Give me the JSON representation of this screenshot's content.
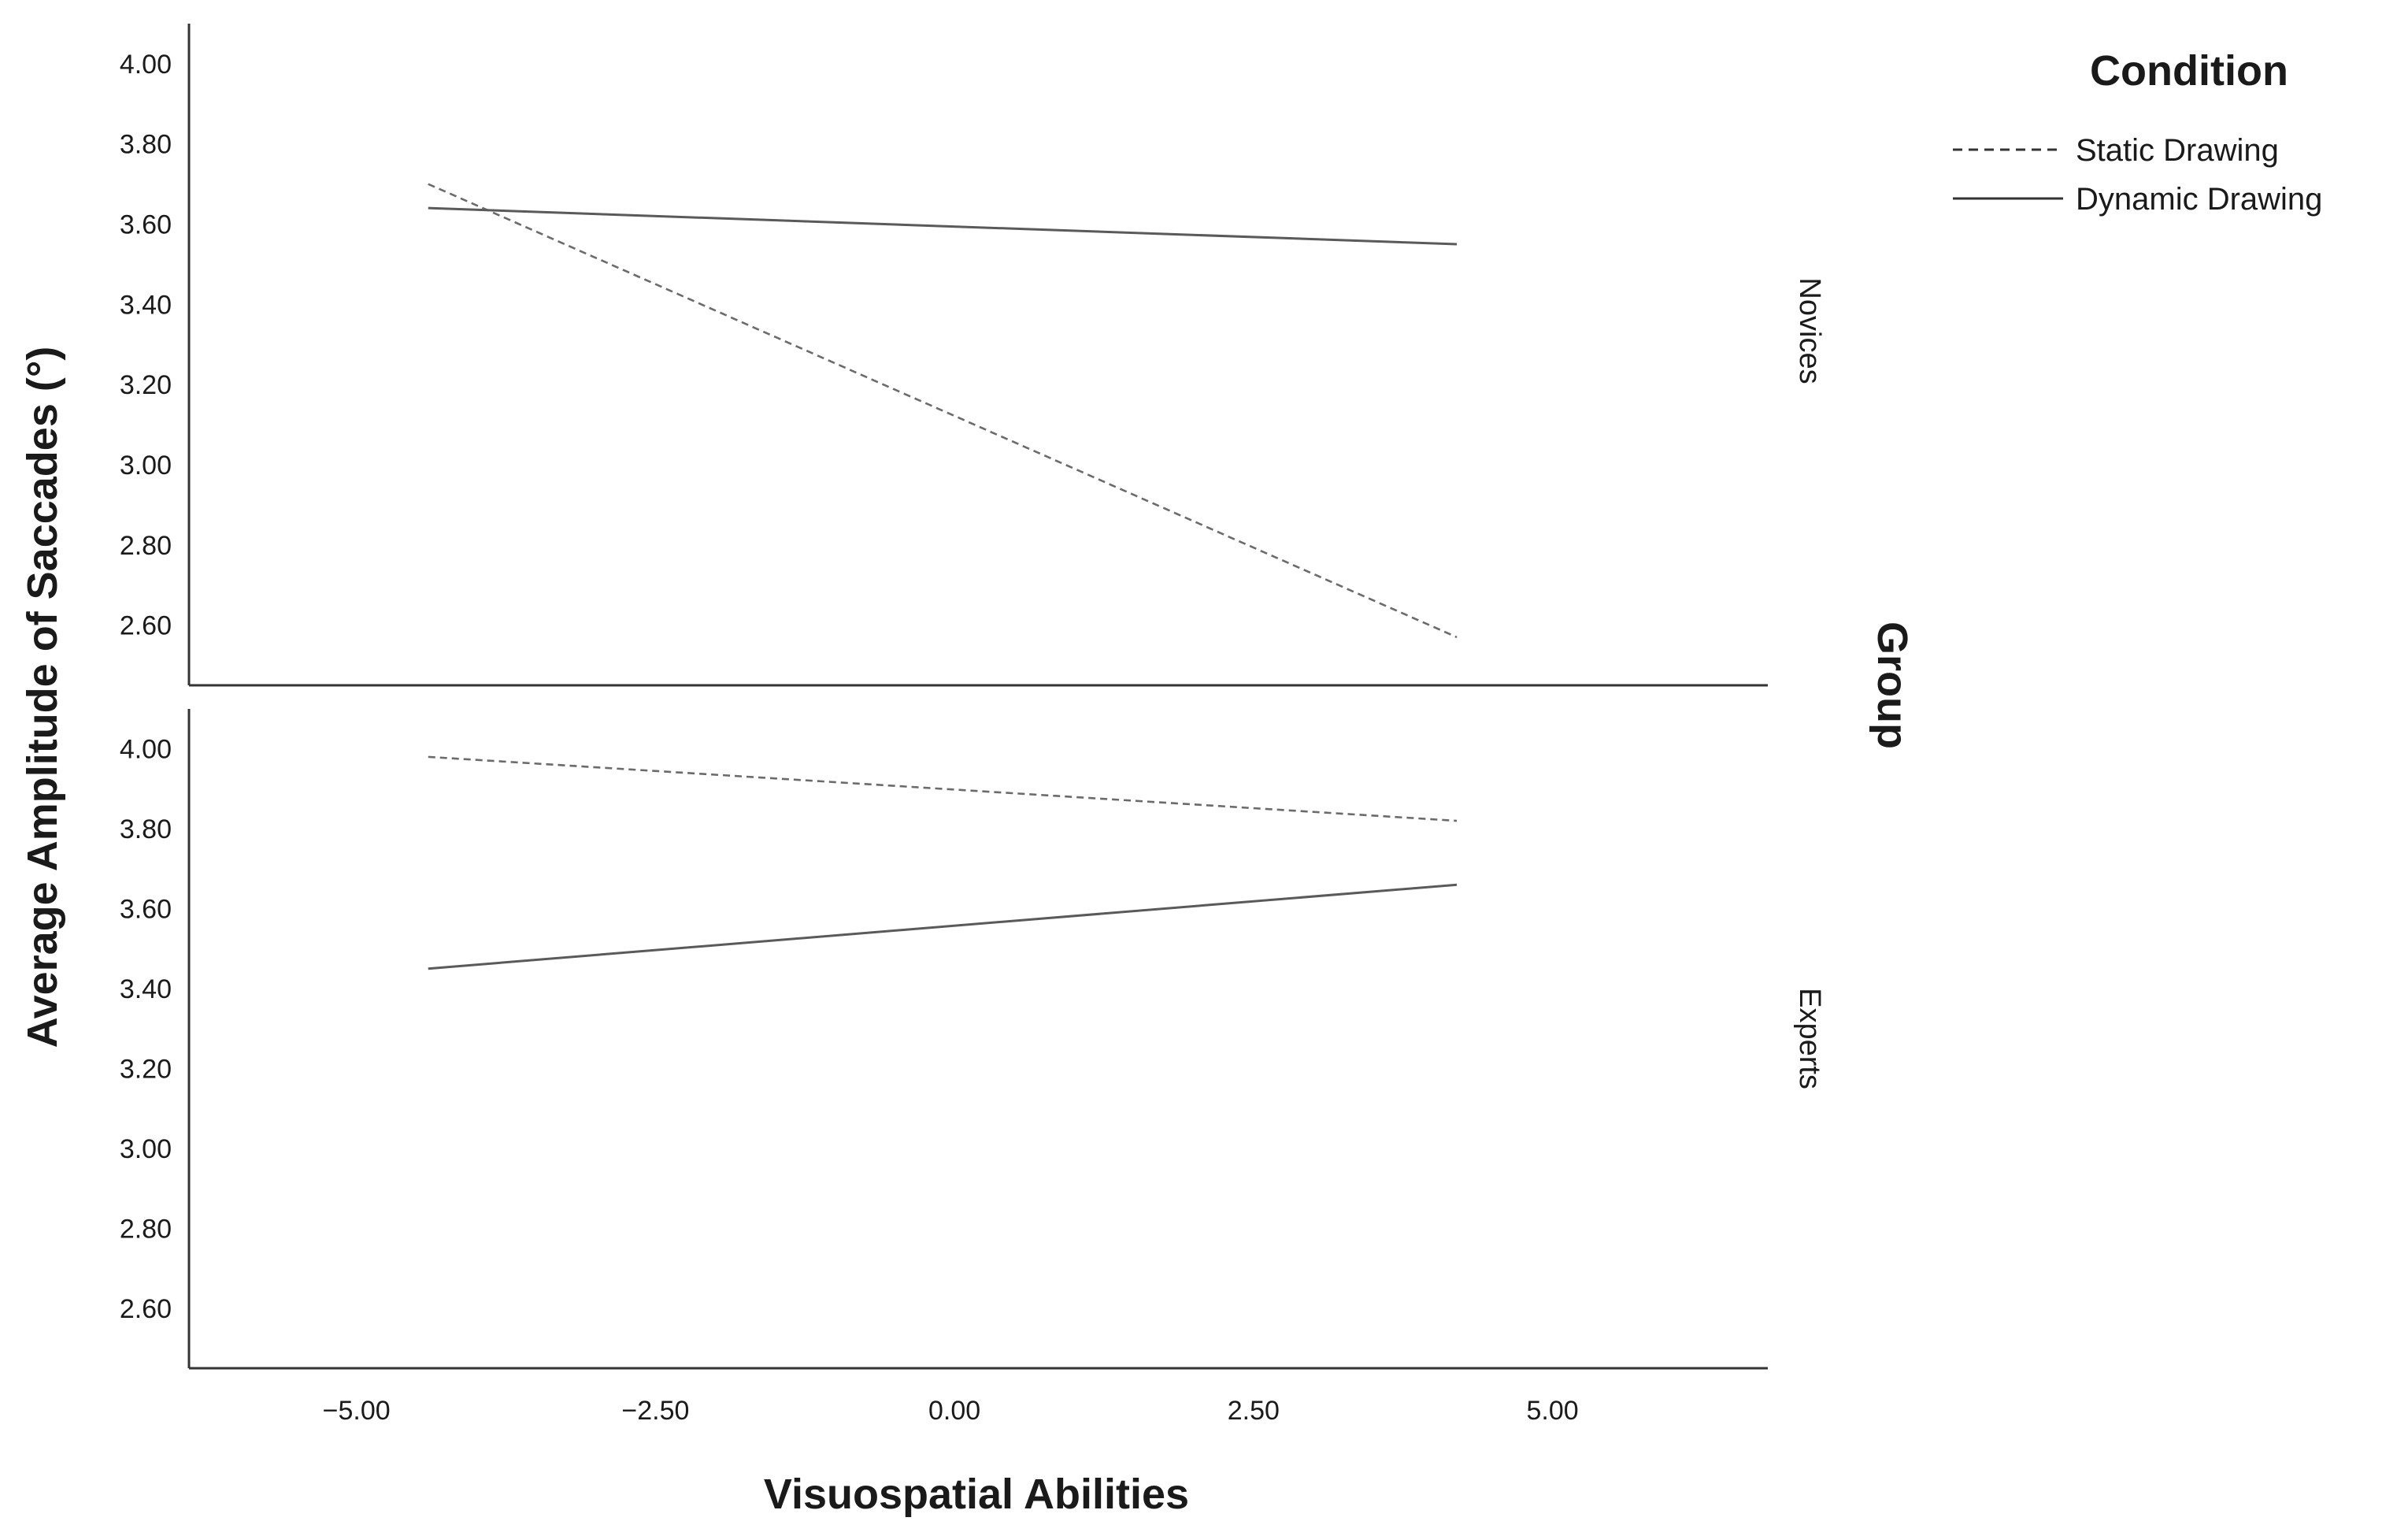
{
  "chart_data": {
    "type": "line",
    "xlabel": "Visuospatial Abilities",
    "ylabel": "Average Amplitude of Saccades  (°)",
    "xlim": [
      -6.4,
      6.8
    ],
    "x_ticks": [
      "−5.00",
      "−2.50",
      "0.00",
      "2.50",
      "5.00"
    ],
    "x_tick_values": [
      -5,
      -2.5,
      0,
      2.5,
      5
    ],
    "ylim": [
      2.45,
      4.1
    ],
    "y_ticks": [
      "4.00",
      "3.80",
      "3.60",
      "3.40",
      "3.20",
      "3.00",
      "2.80",
      "2.60"
    ],
    "y_tick_values": [
      4.0,
      3.8,
      3.6,
      3.4,
      3.2,
      3.0,
      2.8,
      2.6
    ],
    "facet_title": "Group",
    "legend": {
      "title": "Condition",
      "position": "top-right",
      "entries": [
        {
          "name": "Static Drawing",
          "style": "dashed"
        },
        {
          "name": "Dynamic Drawing",
          "style": "solid"
        }
      ]
    },
    "panels": [
      {
        "label": "Novices",
        "series": [
          {
            "name": "Static Drawing",
            "style": "dashed",
            "x": [
              -4.4,
              4.2
            ],
            "y": [
              3.7,
              2.57
            ]
          },
          {
            "name": "Dynamic Drawing",
            "style": "solid",
            "x": [
              -4.4,
              4.2
            ],
            "y": [
              3.64,
              3.55
            ]
          }
        ]
      },
      {
        "label": "Experts",
        "series": [
          {
            "name": "Static Drawing",
            "style": "dashed",
            "x": [
              -4.4,
              4.2
            ],
            "y": [
              3.98,
              3.82
            ]
          },
          {
            "name": "Dynamic Drawing",
            "style": "solid",
            "x": [
              -4.4,
              4.2
            ],
            "y": [
              3.45,
              3.66
            ]
          }
        ]
      }
    ],
    "grid": false
  }
}
